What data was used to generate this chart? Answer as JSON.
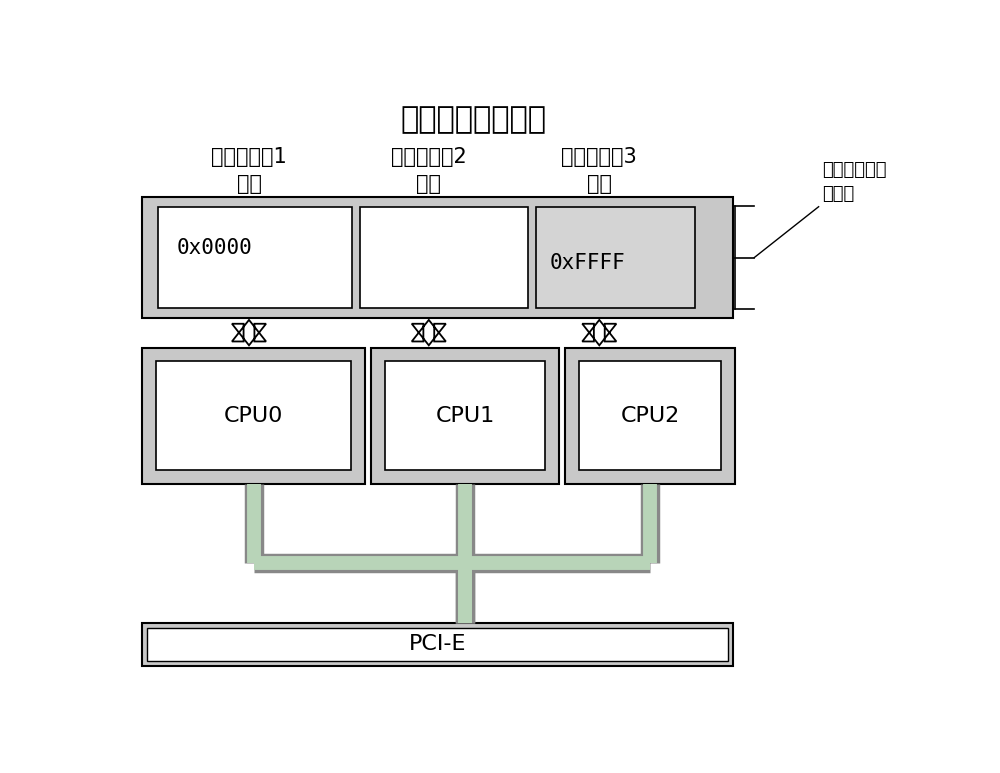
{
  "title": "单一内存空间地址",
  "bg_color": "#ffffff",
  "gray_outer": "#c8c8c8",
  "gray_light": "#d4d4d4",
  "white": "#ffffff",
  "black": "#000000",
  "green_line_fill": "#b8d4b8",
  "green_line_edge": "#888888",
  "label_device1": "计算机设备1\n内存",
  "label_device2": "计算机设备2\n内存",
  "label_device3": "计算机设备3\n内存",
  "label_mem1": "0x0000",
  "label_mem3": "0xFFFF",
  "label_cpu0": "CPU0",
  "label_cpu1": "CPU1",
  "label_cpu2": "CPU2",
  "label_pcie": "PCI-E",
  "label_shared": "共享虚拟内存\n寻址表",
  "title_fontsize": 22,
  "device_label_fontsize": 15,
  "mem_label_fontsize": 15,
  "cpu_fontsize": 16,
  "pcie_fontsize": 16,
  "annot_fontsize": 13
}
